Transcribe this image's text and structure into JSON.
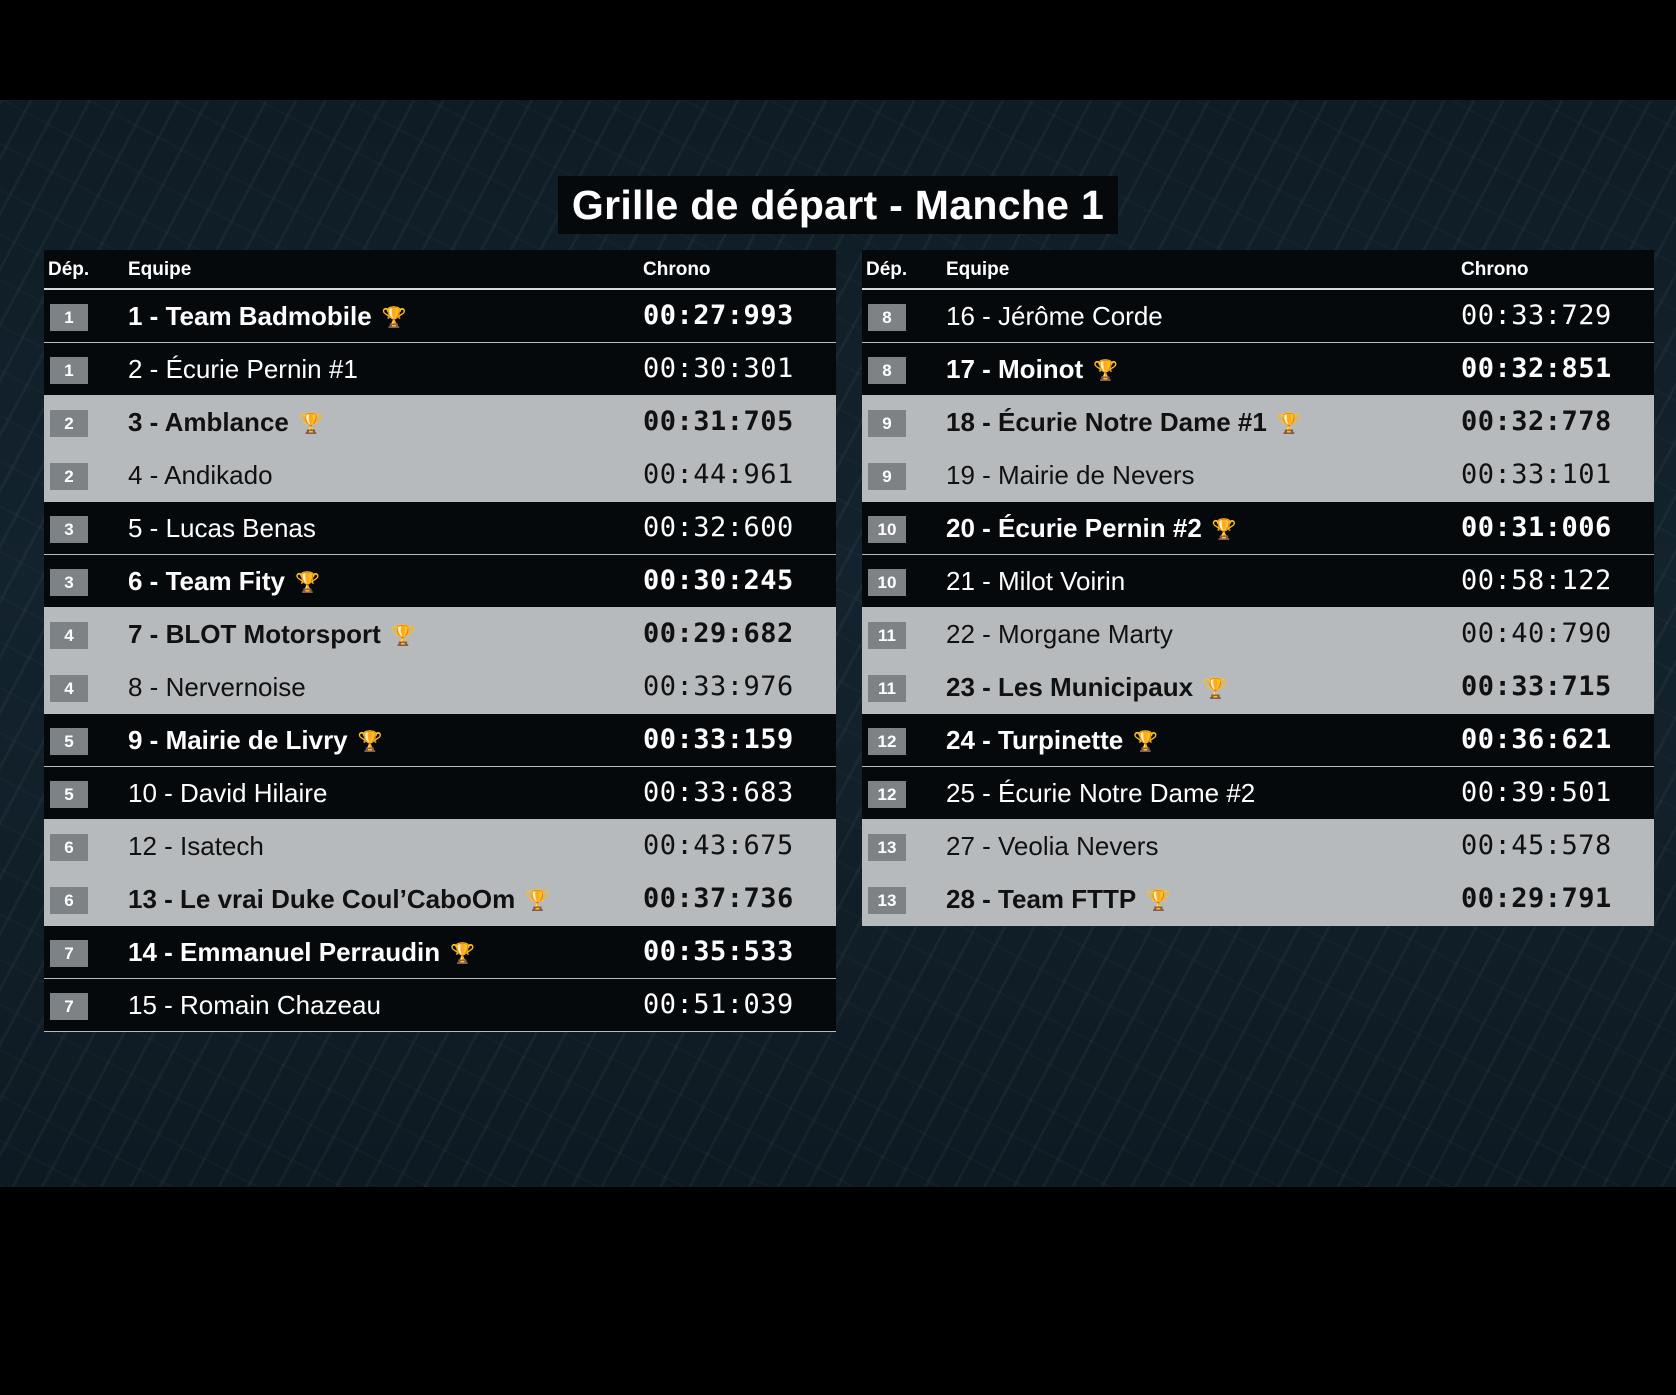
{
  "title": "Grille de départ - Manche 1",
  "headers": {
    "dep": "Dép.",
    "team": "Equipe",
    "chrono": "Chrono"
  },
  "trophy_icon": "🏆",
  "left_table": [
    {
      "pos": "1",
      "team": "1 - Team Badmobile",
      "chrono": "00:27:993",
      "trophy": true,
      "bold": true,
      "shade": "dark"
    },
    {
      "pos": "1",
      "team": "2 - Écurie Pernin #1",
      "chrono": "00:30:301",
      "trophy": false,
      "bold": false,
      "shade": "dark"
    },
    {
      "pos": "2",
      "team": "3 - Amblance",
      "chrono": "00:31:705",
      "trophy": true,
      "bold": true,
      "shade": "light"
    },
    {
      "pos": "2",
      "team": "4 - Andikado",
      "chrono": "00:44:961",
      "trophy": false,
      "bold": false,
      "shade": "light"
    },
    {
      "pos": "3",
      "team": "5 - Lucas Benas",
      "chrono": "00:32:600",
      "trophy": false,
      "bold": false,
      "shade": "dark"
    },
    {
      "pos": "3",
      "team": "6 - Team Fity",
      "chrono": "00:30:245",
      "trophy": true,
      "bold": true,
      "shade": "dark"
    },
    {
      "pos": "4",
      "team": "7 - BLOT Motorsport",
      "chrono": "00:29:682",
      "trophy": true,
      "bold": true,
      "shade": "light"
    },
    {
      "pos": "4",
      "team": "8 - Nervernoise",
      "chrono": "00:33:976",
      "trophy": false,
      "bold": false,
      "shade": "light"
    },
    {
      "pos": "5",
      "team": "9 - Mairie de Livry",
      "chrono": "00:33:159",
      "trophy": true,
      "bold": true,
      "shade": "dark"
    },
    {
      "pos": "5",
      "team": "10 - David Hilaire",
      "chrono": "00:33:683",
      "trophy": false,
      "bold": false,
      "shade": "dark"
    },
    {
      "pos": "6",
      "team": "12 - Isatech",
      "chrono": "00:43:675",
      "trophy": false,
      "bold": false,
      "shade": "light"
    },
    {
      "pos": "6",
      "team": "13 - Le vrai Duke Coul’CaboOm",
      "chrono": "00:37:736",
      "trophy": true,
      "bold": true,
      "shade": "light"
    },
    {
      "pos": "7",
      "team": "14 - Emmanuel Perraudin",
      "chrono": "00:35:533",
      "trophy": true,
      "bold": true,
      "shade": "dark"
    },
    {
      "pos": "7",
      "team": "15 - Romain Chazeau",
      "chrono": "00:51:039",
      "trophy": false,
      "bold": false,
      "shade": "dark"
    }
  ],
  "right_table": [
    {
      "pos": "8",
      "team": "16 - Jérôme Corde",
      "chrono": "00:33:729",
      "trophy": false,
      "bold": false,
      "shade": "dark"
    },
    {
      "pos": "8",
      "team": "17 - Moinot",
      "chrono": "00:32:851",
      "trophy": true,
      "bold": true,
      "shade": "dark"
    },
    {
      "pos": "9",
      "team": "18 - Écurie Notre Dame #1",
      "chrono": "00:32:778",
      "trophy": true,
      "bold": true,
      "shade": "light"
    },
    {
      "pos": "9",
      "team": "19 - Mairie de Nevers",
      "chrono": "00:33:101",
      "trophy": false,
      "bold": false,
      "shade": "light"
    },
    {
      "pos": "10",
      "team": "20 - Écurie Pernin #2",
      "chrono": "00:31:006",
      "trophy": true,
      "bold": true,
      "shade": "dark"
    },
    {
      "pos": "10",
      "team": "21 - Milot Voirin",
      "chrono": "00:58:122",
      "trophy": false,
      "bold": false,
      "shade": "dark"
    },
    {
      "pos": "11",
      "team": "22 - Morgane Marty",
      "chrono": "00:40:790",
      "trophy": false,
      "bold": false,
      "shade": "light"
    },
    {
      "pos": "11",
      "team": "23 - Les Municipaux",
      "chrono": "00:33:715",
      "trophy": true,
      "bold": true,
      "shade": "light"
    },
    {
      "pos": "12",
      "team": "24 - Turpinette",
      "chrono": "00:36:621",
      "trophy": true,
      "bold": true,
      "shade": "dark"
    },
    {
      "pos": "12",
      "team": "25 - Écurie Notre Dame #2",
      "chrono": "00:39:501",
      "trophy": false,
      "bold": false,
      "shade": "dark"
    },
    {
      "pos": "13",
      "team": "27 - Veolia Nevers",
      "chrono": "00:45:578",
      "trophy": false,
      "bold": false,
      "shade": "light"
    },
    {
      "pos": "13",
      "team": "28 - Team FTTP",
      "chrono": "00:29:791",
      "trophy": true,
      "bold": true,
      "shade": "light"
    }
  ]
}
